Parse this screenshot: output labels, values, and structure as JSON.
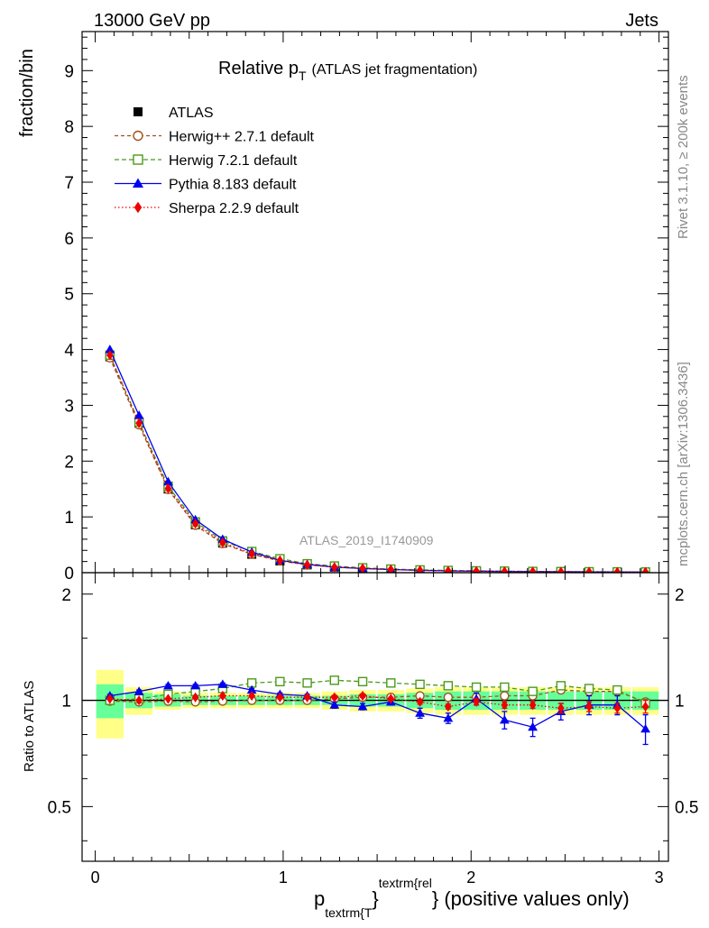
{
  "header": {
    "energy": "13000 GeV pp",
    "process": "Jets"
  },
  "side": {
    "rivet": "Rivet 3.1.10, ≥ 200k events",
    "mcplots": "mcplots.cern.ch [arXiv:1306.3436]"
  },
  "colors": {
    "atlas": "#000000",
    "herwigpp": "#a0521c",
    "herwig7": "#4c9a1a",
    "pythia": "#0000ee",
    "sherpa": "#ee0000",
    "band_inner": "#66ff99",
    "band_outer": "#ffff88"
  },
  "chart_data": {
    "type": "line",
    "title_main": "Relative p",
    "title_sub": "T",
    "title_rest": "(ATLAS jet fragmentation)",
    "analysis_id": "ATLAS_2019_I1740909",
    "ylabel": "fraction/bin",
    "ratio_ylabel": "Ratio to ATLAS",
    "xlabel": {
      "p": "p",
      "sub": "textrm{T",
      "close": "}",
      "sup": "textrm{rel",
      "rest": "} (positive values only)"
    },
    "xlim": [
      -0.07,
      3.05
    ],
    "ylim": [
      0,
      9.7
    ],
    "ratio_ylim": [
      0.35,
      2.3
    ],
    "x_ticks": [
      "0",
      "1",
      "2",
      "3"
    ],
    "y_ticks": [
      "0",
      "1",
      "2",
      "3",
      "4",
      "5",
      "6",
      "7",
      "8",
      "9"
    ],
    "ratio_ticks": [
      "0.5",
      "1",
      "2"
    ],
    "x": [
      0.078,
      0.233,
      0.388,
      0.533,
      0.678,
      0.833,
      0.983,
      1.128,
      1.273,
      1.423,
      1.573,
      1.728,
      1.878,
      2.028,
      2.178,
      2.328,
      2.478,
      2.628,
      2.778,
      2.928
    ],
    "atlas": [
      3.87,
      2.68,
      1.5,
      0.86,
      0.53,
      0.33,
      0.21,
      0.14,
      0.1,
      0.075,
      0.055,
      0.042,
      0.034,
      0.028,
      0.024,
      0.02,
      0.017,
      0.015,
      0.013,
      0.012
    ],
    "band_inner": [
      0.11,
      0.05,
      0.04,
      0.03,
      0.03,
      0.03,
      0.03,
      0.03,
      0.03,
      0.04,
      0.04,
      0.05,
      0.06,
      0.06,
      0.06,
      0.06,
      0.06,
      0.06,
      0.06,
      0.06
    ],
    "band_outer": [
      0.22,
      0.09,
      0.06,
      0.05,
      0.05,
      0.05,
      0.05,
      0.05,
      0.06,
      0.07,
      0.07,
      0.08,
      0.09,
      0.09,
      0.09,
      0.09,
      0.09,
      0.09,
      0.09,
      0.09
    ],
    "series": [
      {
        "key": "herwigpp",
        "name": "Herwig++ 2.7.1 default",
        "marker": "circle-open",
        "dash": "4,3",
        "values": [
          3.85,
          2.65,
          1.49,
          0.85,
          0.52,
          0.33,
          0.21,
          0.14,
          0.1,
          0.075,
          0.055,
          0.043,
          0.034,
          0.028,
          0.024,
          0.02,
          0.017,
          0.015,
          0.013,
          0.012
        ],
        "ratio": [
          0.995,
          0.99,
          0.995,
          0.99,
          0.995,
          1.0,
          1.0,
          1.0,
          1.01,
          1.02,
          1.02,
          1.03,
          1.02,
          1.02,
          1.03,
          1.03,
          1.07,
          1.06,
          1.06,
          0.99
        ],
        "err": [
          0,
          0,
          0,
          0,
          0,
          0,
          0,
          0,
          0,
          0,
          0,
          0,
          0,
          0,
          0,
          0,
          0,
          0,
          0,
          0
        ]
      },
      {
        "key": "herwig7",
        "name": "Herwig 7.2.1 default",
        "marker": "square-open",
        "dash": "5,3",
        "values": [
          3.9,
          2.7,
          1.55,
          0.91,
          0.57,
          0.38,
          0.25,
          0.16,
          0.12,
          0.088,
          0.065,
          0.05,
          0.04,
          0.033,
          0.028,
          0.023,
          0.02,
          0.017,
          0.015,
          0.012
        ],
        "ratio": [
          1.0,
          1.01,
          1.04,
          1.06,
          1.08,
          1.12,
          1.13,
          1.12,
          1.14,
          1.13,
          1.12,
          1.11,
          1.1,
          1.09,
          1.09,
          1.06,
          1.1,
          1.08,
          1.07,
          0.98
        ],
        "err": [
          0,
          0,
          0,
          0,
          0,
          0,
          0,
          0,
          0,
          0,
          0,
          0,
          0,
          0,
          0,
          0,
          0,
          0,
          0,
          0
        ]
      },
      {
        "key": "pythia",
        "name": "Pythia 8.183 default",
        "marker": "triangle",
        "dash": "",
        "values": [
          4.0,
          2.82,
          1.63,
          0.95,
          0.6,
          0.37,
          0.22,
          0.15,
          0.1,
          0.075,
          0.056,
          0.042,
          0.032,
          0.028,
          0.021,
          0.017,
          0.016,
          0.015,
          0.013,
          0.01
        ],
        "ratio": [
          1.03,
          1.06,
          1.1,
          1.1,
          1.11,
          1.07,
          1.04,
          1.03,
          0.97,
          0.96,
          0.99,
          0.92,
          0.89,
          1.01,
          0.88,
          0.84,
          0.93,
          0.97,
          0.97,
          0.83
        ],
        "err": [
          0.01,
          0.01,
          0.01,
          0.01,
          0.01,
          0.01,
          0.01,
          0.01,
          0.02,
          0.02,
          0.02,
          0.03,
          0.03,
          0.04,
          0.05,
          0.05,
          0.05,
          0.06,
          0.06,
          0.08
        ]
      },
      {
        "key": "sherpa",
        "name": "Sherpa 2.2.9 default",
        "marker": "diamond",
        "dash": "1.5,2.5",
        "values": [
          3.9,
          2.68,
          1.51,
          0.88,
          0.54,
          0.34,
          0.22,
          0.14,
          0.1,
          0.078,
          0.056,
          0.042,
          0.033,
          0.028,
          0.023,
          0.02,
          0.016,
          0.014,
          0.013,
          0.012
        ],
        "ratio": [
          1.01,
          1.0,
          1.01,
          1.02,
          1.03,
          1.03,
          1.02,
          1.02,
          1.02,
          1.03,
          1.01,
          0.99,
          0.96,
          0.99,
          0.97,
          0.97,
          0.95,
          0.96,
          0.95,
          0.96
        ],
        "err": [
          0.005,
          0.005,
          0.005,
          0.005,
          0.005,
          0.005,
          0.01,
          0.01,
          0.01,
          0.01,
          0.01,
          0.015,
          0.015,
          0.02,
          0.02,
          0.02,
          0.03,
          0.03,
          0.03,
          0.04
        ]
      }
    ],
    "legend": {
      "placement": "top-left",
      "entries": [
        {
          "key": "atlas",
          "label": "ATLAS",
          "marker": "square-filled"
        },
        {
          "key": "herwigpp",
          "label": "Herwig++ 2.7.1 default",
          "marker": "circle-open"
        },
        {
          "key": "herwig7",
          "label": "Herwig 7.2.1 default",
          "marker": "square-open"
        },
        {
          "key": "pythia",
          "label": "Pythia 8.183 default",
          "marker": "triangle"
        },
        {
          "key": "sherpa",
          "label": "Sherpa 2.2.9 default",
          "marker": "diamond"
        }
      ]
    }
  }
}
